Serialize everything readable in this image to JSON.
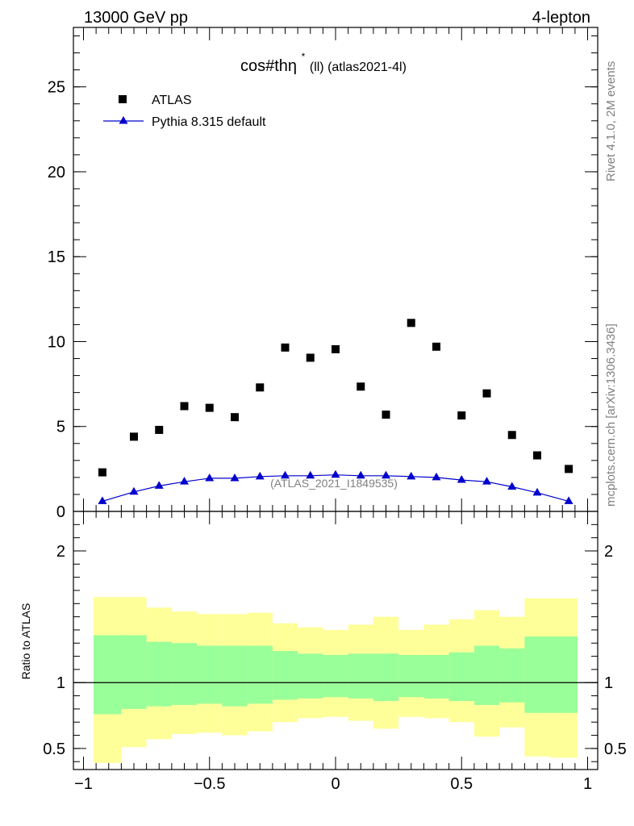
{
  "header": {
    "left": "13000 GeV pp",
    "right": "4-lepton"
  },
  "side": {
    "rivet": "Rivet 4.1.0,  2M events",
    "mcplots": "mcplots.cern.ch [arXiv:1306.3436]"
  },
  "colors": {
    "data": "#000000",
    "mc": "#0000cc",
    "band_inner": "#99ff99",
    "band_outer": "#ffff99"
  },
  "chart_data": [
    {
      "type": "scatter",
      "panel": "main",
      "title_main": "cos#thη",
      "title_sup": "*",
      "title_rest": " (ll) (atlas2021-4l)",
      "watermark": "(ATLAS_2021_I1849535)",
      "xlim": [
        -1.04,
        1.04
      ],
      "ylim": [
        0,
        28.5
      ],
      "yticks": [
        0,
        5,
        10,
        15,
        20,
        25
      ],
      "ytick_labels": [
        "0",
        "5",
        "10",
        "15",
        "20",
        "25"
      ],
      "legend_position": "top-left",
      "series": [
        {
          "name": "ATLAS",
          "marker": "square",
          "x": [
            -0.925,
            -0.8,
            -0.7,
            -0.6,
            -0.5,
            -0.4,
            -0.3,
            -0.2,
            -0.1,
            0.0,
            0.1,
            0.2,
            0.3,
            0.4,
            0.5,
            0.6,
            0.7,
            0.8,
            0.925
          ],
          "values": [
            2.3,
            4.4,
            4.8,
            6.2,
            6.1,
            5.55,
            7.3,
            9.65,
            9.05,
            9.55,
            7.35,
            5.7,
            11.1,
            9.7,
            5.65,
            6.95,
            4.5,
            3.3,
            2.5
          ]
        },
        {
          "name": "Pythia 8.315 default",
          "marker": "triangle",
          "x": [
            -0.925,
            -0.8,
            -0.7,
            -0.6,
            -0.5,
            -0.4,
            -0.3,
            -0.2,
            -0.1,
            0.0,
            0.1,
            0.2,
            0.3,
            0.4,
            0.5,
            0.6,
            0.7,
            0.8,
            0.925
          ],
          "values": [
            0.6,
            1.15,
            1.5,
            1.75,
            1.95,
            1.95,
            2.05,
            2.1,
            2.1,
            2.15,
            2.1,
            2.1,
            2.05,
            2.0,
            1.85,
            1.75,
            1.45,
            1.1,
            0.6
          ]
        }
      ]
    },
    {
      "type": "area",
      "panel": "ratio",
      "ylabel": "Ratio to ATLAS",
      "xlim": [
        -1.04,
        1.04
      ],
      "ylim": [
        0.34,
        2.3
      ],
      "yticks": [
        0.5,
        1,
        2
      ],
      "ytick_labels": [
        "0.5",
        "1",
        "2"
      ],
      "xticks": [
        -1,
        -0.5,
        0,
        0.5,
        1
      ],
      "xtick_labels": [
        "−1",
        "−0.5",
        "0",
        "0.5",
        "1"
      ],
      "bin_edges": [
        -0.96,
        -0.85,
        -0.75,
        -0.65,
        -0.55,
        -0.45,
        -0.35,
        -0.25,
        -0.15,
        -0.05,
        0.05,
        0.15,
        0.25,
        0.35,
        0.45,
        0.55,
        0.65,
        0.75,
        0.85,
        0.96
      ],
      "inner_high": [
        1.36,
        1.36,
        1.31,
        1.3,
        1.28,
        1.28,
        1.28,
        1.24,
        1.22,
        1.21,
        1.22,
        1.22,
        1.21,
        1.21,
        1.23,
        1.28,
        1.26,
        1.35,
        1.35
      ],
      "inner_low": [
        0.76,
        0.8,
        0.82,
        0.83,
        0.84,
        0.82,
        0.84,
        0.87,
        0.88,
        0.89,
        0.88,
        0.86,
        0.89,
        0.88,
        0.86,
        0.83,
        0.85,
        0.77,
        0.77
      ],
      "outer_high": [
        1.65,
        1.65,
        1.57,
        1.54,
        1.52,
        1.52,
        1.53,
        1.45,
        1.42,
        1.4,
        1.44,
        1.5,
        1.4,
        1.44,
        1.48,
        1.55,
        1.5,
        1.64,
        1.64
      ],
      "outer_low": [
        0.39,
        0.51,
        0.57,
        0.61,
        0.62,
        0.6,
        0.63,
        0.7,
        0.73,
        0.74,
        0.71,
        0.65,
        0.74,
        0.73,
        0.7,
        0.59,
        0.66,
        0.44,
        0.43
      ],
      "reference": 1
    }
  ]
}
